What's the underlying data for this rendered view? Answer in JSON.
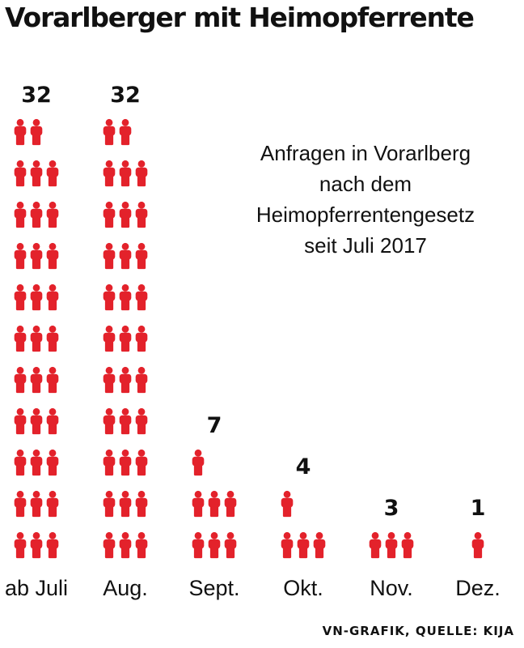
{
  "chart_data": {
    "type": "bar",
    "title": "Vorarlberger mit Heimopferrente",
    "subtitle_lines": [
      "Anfragen in Vorarlberg",
      "nach dem",
      "Heimopferrentengesetz",
      "seit Juli 2017"
    ],
    "categories": [
      "ab Juli",
      "Aug.",
      "Sept.",
      "Okt.",
      "Nov.",
      "Dez."
    ],
    "values": [
      32,
      32,
      7,
      4,
      3,
      1
    ],
    "value_labels": [
      "32",
      "32",
      "7",
      "4",
      "3",
      "1"
    ],
    "icon": "person-icon",
    "icon_color": "#e3222b",
    "source": "VN-GRAFIK, QUELLE: KIJA"
  }
}
